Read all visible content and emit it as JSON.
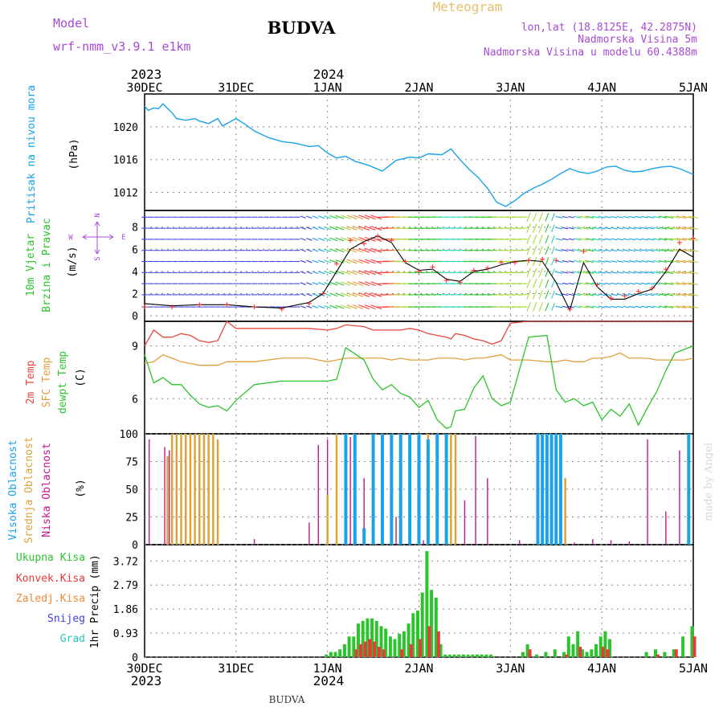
{
  "header": {
    "model_label": "Model",
    "model_name": "wrf-nmm_v3.9.1 e1km",
    "station": "BUDVA",
    "app_title": "Meteogram",
    "lonlat": "lon,lat (18.8125E, 42.2875N)",
    "elevation": "Nadmorska Visina 5m",
    "model_elevation": "Nadmorska Visina u modelu 60.4388m",
    "footer_station": "BUDVA",
    "credit": "made by Angel"
  },
  "colors": {
    "pressure": "#1aa3e8",
    "temp2m": "#e8473a",
    "sfc_temp": "#e2a03c",
    "dewpoint": "#2cc42c",
    "wind_speed": "#000000",
    "gust": "#ff2a2a",
    "high_cloud": "#1aa3e8",
    "mid_cloud": "#d9a43a",
    "low_cloud": "#c0188a",
    "precip_total": "#2cc42c",
    "precip_conv": "#e83a3a",
    "precip_frozen": "#f08a3a",
    "snow": "#4040e0",
    "hail": "#28c8c0",
    "header_purple": "#a84ad8",
    "meteogram_orange": "#e8c070"
  },
  "time_axis": {
    "top_year_left": "2023",
    "top_year_mid": "2024",
    "bottom_year_left": "2023",
    "bottom_year_mid": "2024",
    "ticks": [
      "30DEC",
      "31DEC",
      "1JAN",
      "2JAN",
      "3JAN",
      "4JAN",
      "5JAN"
    ]
  },
  "chart_data": [
    {
      "type": "line",
      "panel": "pressure",
      "ylabel_title": "Pritisak na nivou mora",
      "ylabel_unit": "(hPa)",
      "yticks": [
        "1012",
        "1016",
        "1020"
      ],
      "ylim": [
        1009.8,
        1024.0
      ],
      "x_days": [
        0,
        0.04,
        0.1,
        0.15,
        0.2,
        0.3,
        0.35,
        0.45,
        0.55,
        0.6,
        0.7,
        0.8,
        0.85,
        0.95,
        1.0,
        1.1,
        1.2,
        1.35,
        1.5,
        1.65,
        1.8,
        1.9,
        2.0,
        2.1,
        2.2,
        2.3,
        2.45,
        2.6,
        2.75,
        2.9,
        3.0,
        3.1,
        3.25,
        3.35,
        3.45,
        3.55,
        3.6,
        3.65,
        3.75,
        3.85,
        3.95,
        4.05,
        4.15,
        4.25,
        4.35,
        4.45,
        4.55,
        4.65,
        4.75,
        4.85,
        4.95,
        5.05,
        5.15,
        5.25,
        5.35,
        5.45,
        5.55,
        5.65,
        5.75,
        5.85,
        6.0
      ],
      "values": [
        1022.5,
        1022.0,
        1022.3,
        1022.2,
        1022.8,
        1021.7,
        1021.0,
        1020.8,
        1021.0,
        1020.7,
        1020.4,
        1021.0,
        1020.1,
        1020.7,
        1021.0,
        1020.3,
        1019.5,
        1018.7,
        1018.2,
        1018.0,
        1017.6,
        1017.7,
        1016.8,
        1016.2,
        1016.4,
        1015.8,
        1015.3,
        1014.6,
        1015.9,
        1016.3,
        1016.2,
        1016.7,
        1016.6,
        1017.3,
        1016.0,
        1014.8,
        1014.3,
        1013.8,
        1012.5,
        1010.8,
        1010.3,
        1011.0,
        1011.9,
        1012.5,
        1013.0,
        1013.6,
        1014.3,
        1014.9,
        1014.5,
        1014.3,
        1014.6,
        1015.1,
        1015.2,
        1014.7,
        1014.5,
        1014.6,
        1014.9,
        1015.1,
        1015.2,
        1014.9,
        1014.2
      ]
    },
    {
      "type": "line",
      "panel": "wind",
      "ylabel_title": "10m Vjetar",
      "ylabel_title2": "Brzina i Pravac",
      "ylabel_unit": "(m/s)",
      "compass": {
        "n": "N",
        "s": "S",
        "e": "E",
        "w": "W"
      },
      "yticks": [
        "0",
        "2",
        "4",
        "6",
        "8"
      ],
      "ylim": [
        -0.5,
        9.5
      ],
      "x_days": [
        0,
        0.3,
        0.6,
        0.9,
        1.2,
        1.5,
        1.8,
        1.95,
        2.1,
        2.25,
        2.4,
        2.55,
        2.7,
        2.85,
        3.0,
        3.15,
        3.3,
        3.45,
        3.6,
        3.75,
        3.9,
        4.05,
        4.2,
        4.35,
        4.5,
        4.65,
        4.8,
        4.95,
        5.1,
        5.25,
        5.4,
        5.55,
        5.7,
        5.85,
        6.0
      ],
      "values": [
        1.1,
        0.9,
        1.0,
        1.0,
        0.8,
        0.7,
        1.2,
        2.0,
        4.0,
        6.0,
        6.7,
        7.2,
        6.6,
        4.8,
        4.1,
        4.2,
        3.3,
        3.1,
        4.0,
        4.2,
        4.6,
        4.9,
        5.0,
        4.9,
        3.0,
        0.5,
        4.8,
        2.6,
        1.5,
        1.5,
        2.0,
        2.4,
        4.0,
        6.0,
        5.3
      ],
      "gust_values": [
        0.8,
        0.8,
        1.0,
        1.0,
        0.8,
        0.6,
        1.1,
        2.0,
        4.7,
        6.8,
        6.5,
        7.2,
        6.8,
        4.9,
        4.0,
        4.4,
        3.2,
        3.0,
        4.1,
        4.3,
        4.8,
        4.8,
        5.0,
        5.1,
        5.0,
        0.6,
        5.8,
        2.8,
        1.6,
        1.8,
        2.2,
        2.5,
        4.2,
        6.6,
        7.0
      ]
    },
    {
      "type": "line",
      "panel": "temperature",
      "ylabel_title": "2m Temp",
      "ylabel_title2": "SFC Temp",
      "ylabel_title3": "dewpt Temp",
      "ylabel_unit": "(C)",
      "yticks": [
        "6",
        "9"
      ],
      "ylim": [
        4.0,
        10.4
      ],
      "x_days": [
        0,
        0.1,
        0.2,
        0.3,
        0.4,
        0.5,
        0.6,
        0.7,
        0.8,
        0.9,
        1.0,
        1.2,
        1.5,
        1.8,
        2.0,
        2.1,
        2.2,
        2.4,
        2.5,
        2.6,
        2.7,
        2.8,
        2.9,
        3.0,
        3.1,
        3.2,
        3.3,
        3.35,
        3.4,
        3.5,
        3.6,
        3.7,
        3.8,
        3.9,
        4.0,
        4.2,
        4.4,
        4.5,
        4.6,
        4.7,
        4.8,
        4.9,
        5.0,
        5.1,
        5.2,
        5.3,
        5.4,
        5.5,
        5.6,
        5.7,
        5.8,
        5.9,
        6.0
      ],
      "t2m": [
        9.0,
        9.9,
        9.5,
        9.5,
        9.7,
        9.6,
        9.3,
        9.2,
        9.3,
        10.4,
        10.0,
        10.0,
        10.0,
        10.0,
        9.9,
        10.0,
        10.2,
        10.1,
        9.9,
        9.9,
        9.9,
        9.9,
        10.0,
        9.9,
        9.7,
        9.6,
        9.5,
        9.4,
        9.7,
        9.6,
        9.4,
        9.3,
        9.1,
        9.3,
        10.3,
        10.4,
        10.4,
        10.4,
        10.4,
        10.4,
        10.4,
        10.4,
        10.4,
        10.4,
        10.4,
        10.4,
        10.4,
        10.4,
        10.4,
        10.4,
        10.4,
        10.4,
        10.4
      ],
      "sfc": [
        8.0,
        8.1,
        8.5,
        8.3,
        8.1,
        8.0,
        7.9,
        7.9,
        7.9,
        8.1,
        8.1,
        8.1,
        8.3,
        8.3,
        8.1,
        8.2,
        8.3,
        8.3,
        8.3,
        8.3,
        8.2,
        8.3,
        8.2,
        8.2,
        8.2,
        8.3,
        8.3,
        8.3,
        8.3,
        8.2,
        8.3,
        8.3,
        8.4,
        8.5,
        8.2,
        8.2,
        8.1,
        8.1,
        8.2,
        8.1,
        8.1,
        8.3,
        8.3,
        8.4,
        8.6,
        8.3,
        8.3,
        8.3,
        8.2,
        8.2,
        8.2,
        8.2,
        8.3
      ],
      "dewpt": [
        8.5,
        6.9,
        7.2,
        6.8,
        6.8,
        6.2,
        5.7,
        5.5,
        5.6,
        5.3,
        5.9,
        6.8,
        7.0,
        7.0,
        7.0,
        7.1,
        8.9,
        8.2,
        7.1,
        6.5,
        6.8,
        6.3,
        6.1,
        5.5,
        5.9,
        4.8,
        4.3,
        4.4,
        5.3,
        5.4,
        6.6,
        7.3,
        6.0,
        5.6,
        5.8,
        9.5,
        9.6,
        6.5,
        5.8,
        6.0,
        5.6,
        5.8,
        4.8,
        5.4,
        5.0,
        5.7,
        4.5,
        5.5,
        6.4,
        7.6,
        8.6,
        8.8,
        9.0
      ]
    },
    {
      "type": "bar",
      "panel": "cloud",
      "ylabel_title": "Visoka Oblacnost",
      "ylabel_title2": "Srednja Oblacnost",
      "ylabel_title3": "Niska Oblacnost",
      "ylabel_unit": "(%)",
      "yticks": [
        "0",
        "25",
        "50",
        "75",
        "100"
      ],
      "ylim": [
        0,
        100
      ],
      "series": [
        {
          "name": "Niska Oblacnost",
          "x_days": [
            0.05,
            0.22,
            0.27,
            0.4,
            0.45,
            0.55,
            0.7,
            1.2,
            1.8,
            1.9,
            2.0,
            2.25,
            2.4,
            2.5,
            2.75,
            2.9,
            3.05,
            3.3,
            3.4,
            3.5,
            3.62,
            3.75,
            4.1,
            4.4,
            4.6,
            4.7,
            4.9,
            5.1,
            5.3,
            5.5,
            5.7,
            5.85,
            5.95
          ],
          "values": [
            95,
            88,
            85,
            70,
            92,
            60,
            70,
            5,
            20,
            90,
            95,
            97,
            60,
            10,
            25,
            10,
            4,
            90,
            20,
            40,
            98,
            60,
            4,
            3,
            2,
            2,
            5,
            4,
            3,
            95,
            30,
            85,
            95
          ]
        },
        {
          "name": "Srednja Oblacnost",
          "x_days": [
            0.25,
            0.3,
            0.35,
            0.4,
            0.45,
            0.5,
            0.55,
            0.6,
            0.65,
            0.7,
            0.75,
            0.8,
            2.0,
            2.1,
            2.2,
            2.3,
            2.7,
            2.8,
            2.9,
            3.0,
            3.1,
            3.2,
            3.3,
            3.35,
            3.4,
            4.3,
            4.4,
            4.5,
            4.6
          ],
          "values": [
            80,
            100,
            100,
            100,
            100,
            100,
            100,
            100,
            100,
            100,
            100,
            95,
            45,
            100,
            100,
            100,
            100,
            100,
            100,
            100,
            100,
            100,
            100,
            100,
            100,
            100,
            100,
            100,
            60
          ]
        },
        {
          "name": "Visoka Oblacnost",
          "x_days": [
            2.2,
            2.3,
            2.4,
            2.5,
            2.6,
            2.7,
            2.8,
            2.9,
            3.0,
            3.1,
            3.2,
            3.3,
            4.3,
            4.35,
            4.4,
            4.45,
            4.5,
            4.55,
            5.95
          ],
          "values": [
            100,
            100,
            15,
            100,
            100,
            100,
            100,
            100,
            100,
            95,
            100,
            100,
            100,
            100,
            100,
            100,
            100,
            100,
            100
          ]
        }
      ]
    },
    {
      "type": "bar",
      "panel": "precip",
      "ylabel_title": "1hr Precip",
      "ylabel_unit": "(mm)",
      "yticks": [
        "0",
        "0.93",
        "1.86",
        "2.79",
        "3.72"
      ],
      "ylim": [
        0,
        4.35
      ],
      "legend": [
        "Ukupna Kisa",
        "Konvek.Kisa",
        "Zaledj.Kisa",
        "Snijeg",
        "Grad"
      ],
      "series": [
        {
          "name": "Ukupna Kisa",
          "x_days": [
            2.0,
            2.05,
            2.1,
            2.15,
            2.2,
            2.25,
            2.3,
            2.35,
            2.4,
            2.45,
            2.5,
            2.55,
            2.6,
            2.65,
            2.7,
            2.75,
            2.8,
            2.85,
            2.9,
            2.95,
            3.0,
            3.05,
            3.1,
            3.15,
            3.2,
            3.25,
            3.3,
            3.35,
            3.4,
            3.45,
            3.5,
            3.55,
            3.6,
            3.65,
            3.7,
            3.75,
            3.8,
            4.15,
            4.2,
            4.3,
            4.4,
            4.5,
            4.6,
            4.65,
            4.7,
            4.75,
            4.8,
            4.85,
            4.9,
            4.95,
            5.0,
            5.05,
            5.1,
            5.5,
            5.6,
            5.7,
            5.8,
            5.9,
            6.0
          ],
          "values": [
            0.1,
            0.2,
            0.2,
            0.3,
            0.5,
            0.8,
            0.8,
            1.3,
            1.4,
            1.5,
            1.5,
            1.4,
            1.2,
            1.1,
            0.8,
            0.7,
            0.9,
            1.0,
            1.3,
            1.7,
            1.8,
            2.5,
            4.1,
            2.6,
            2.3,
            0.5,
            0.1,
            0.1,
            0.1,
            0.1,
            0.1,
            0.1,
            0.1,
            0.1,
            0.1,
            0.1,
            0.1,
            0.2,
            0.5,
            0.1,
            0.2,
            0.3,
            0.2,
            0.8,
            0.5,
            1.0,
            0.3,
            0.2,
            0.3,
            0.5,
            0.8,
            1.0,
            0.7,
            0.2,
            0.3,
            0.2,
            0.3,
            0.8,
            1.2
          ]
        },
        {
          "name": "Konvek.Kisa",
          "x_days": [
            2.3,
            2.35,
            2.4,
            2.45,
            2.5,
            2.55,
            2.6,
            2.8,
            2.9,
            3.0,
            3.1,
            3.2,
            4.2,
            4.6,
            4.75,
            5.0,
            5.05,
            5.6,
            5.8,
            6.0
          ],
          "values": [
            0.3,
            0.5,
            0.6,
            0.7,
            0.6,
            0.4,
            0.3,
            0.3,
            0.5,
            0.7,
            1.2,
            1.0,
            0.3,
            0.1,
            0.4,
            0.4,
            0.3,
            0.1,
            0.3,
            0.8
          ]
        }
      ]
    }
  ]
}
